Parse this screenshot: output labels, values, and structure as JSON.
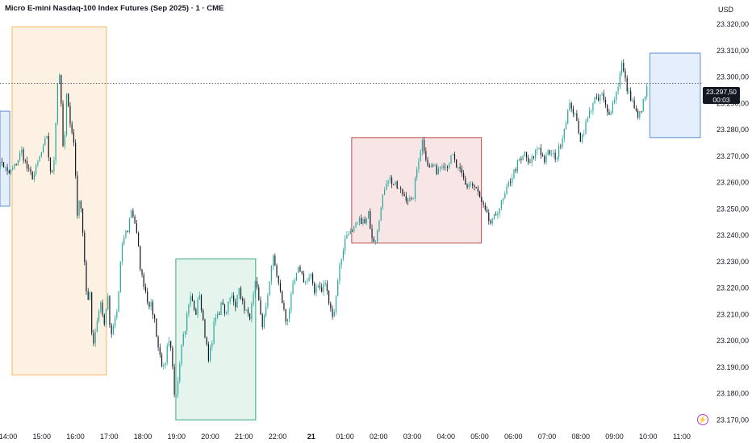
{
  "header": {
    "title": "Micro E-mini Nasdaq-100 Index Futures (Sep 2025) · 1 · CME",
    "currency": "USD"
  },
  "price_tag": {
    "price": "23.297,50",
    "countdown": "00:03"
  },
  "colors": {
    "up": "#26a69a",
    "down": "#131722",
    "text": "#131722",
    "orange_fill": "#fdf1e3",
    "orange_stroke": "#f5b860",
    "green_fill": "#e6f4ee",
    "green_stroke": "#3aa67f",
    "red_fill": "#f8e6e6",
    "red_stroke": "#c44e4e",
    "blue_fill": "#e5eefc",
    "blue_stroke": "#5b8fd6",
    "lightning": "#b53cc4"
  },
  "chart_data": {
    "type": "candlestick",
    "title": "Micro E-mini Nasdaq-100 Index Futures (Sep 2025) · 1 · CME",
    "ylim": [
      23165,
      23325
    ],
    "y_ticks": [
      "23.320,00",
      "23.310,00",
      "23.300,00",
      "23.290,00",
      "23.280,00",
      "23.270,00",
      "23.260,00",
      "23.250,00",
      "23.240,00",
      "23.230,00",
      "23.220,00",
      "23.210,00",
      "23.200,00",
      "23.190,00",
      "23.180,00",
      "23.170,00"
    ],
    "y_tick_values": [
      23320,
      23310,
      23300,
      23290,
      23280,
      23270,
      23260,
      23250,
      23240,
      23230,
      23220,
      23210,
      23200,
      23190,
      23180,
      23170
    ],
    "x_ticks": [
      {
        "label": "14:00",
        "t": 14.0,
        "bold": false
      },
      {
        "label": "15:00",
        "t": 15.0,
        "bold": false
      },
      {
        "label": "16:00",
        "t": 16.0,
        "bold": false
      },
      {
        "label": "17:00",
        "t": 17.0,
        "bold": false
      },
      {
        "label": "18:00",
        "t": 18.0,
        "bold": false
      },
      {
        "label": "19:00",
        "t": 19.0,
        "bold": false
      },
      {
        "label": "20:00",
        "t": 20.0,
        "bold": false
      },
      {
        "label": "21:00",
        "t": 21.0,
        "bold": false
      },
      {
        "label": "22:00",
        "t": 22.0,
        "bold": false
      },
      {
        "label": "21",
        "t": 23.0,
        "bold": true
      },
      {
        "label": "01:00",
        "t": 24.0,
        "bold": false
      },
      {
        "label": "02:00",
        "t": 25.0,
        "bold": false
      },
      {
        "label": "03:00",
        "t": 26.0,
        "bold": false
      },
      {
        "label": "04:00",
        "t": 27.0,
        "bold": false
      },
      {
        "label": "05:00",
        "t": 28.0,
        "bold": false
      },
      {
        "label": "06:00",
        "t": 29.0,
        "bold": false
      },
      {
        "label": "07:00",
        "t": 30.0,
        "bold": false
      },
      {
        "label": "08:00",
        "t": 31.0,
        "bold": false
      },
      {
        "label": "09:00",
        "t": 32.0,
        "bold": false
      },
      {
        "label": "10:00",
        "t": 33.0,
        "bold": false
      },
      {
        "label": "11:00",
        "t": 34.0,
        "bold": false
      }
    ],
    "x_range": [
      13.55,
      34.9
    ],
    "last_price": 23297.5,
    "path_points": [
      [
        13.55,
        23262
      ],
      [
        13.8,
        23268
      ],
      [
        14.0,
        23263
      ],
      [
        14.2,
        23266
      ],
      [
        14.4,
        23272
      ],
      [
        14.6,
        23264
      ],
      [
        14.75,
        23262
      ],
      [
        14.95,
        23270
      ],
      [
        15.05,
        23273
      ],
      [
        15.15,
        23278
      ],
      [
        15.25,
        23263
      ],
      [
        15.35,
        23266
      ],
      [
        15.45,
        23292
      ],
      [
        15.5,
        23306
      ],
      [
        15.55,
        23296
      ],
      [
        15.65,
        23268
      ],
      [
        15.75,
        23296
      ],
      [
        15.85,
        23282
      ],
      [
        15.95,
        23275
      ],
      [
        16.0,
        23264
      ],
      [
        16.05,
        23248
      ],
      [
        16.15,
        23254
      ],
      [
        16.25,
        23235
      ],
      [
        16.35,
        23212
      ],
      [
        16.45,
        23220
      ],
      [
        16.5,
        23196
      ],
      [
        16.6,
        23205
      ],
      [
        16.75,
        23215
      ],
      [
        16.85,
        23205
      ],
      [
        16.95,
        23218
      ],
      [
        17.05,
        23200
      ],
      [
        17.15,
        23207
      ],
      [
        17.25,
        23212
      ],
      [
        17.35,
        23232
      ],
      [
        17.45,
        23240
      ],
      [
        17.55,
        23242
      ],
      [
        17.65,
        23250
      ],
      [
        17.75,
        23246
      ],
      [
        17.85,
        23237
      ],
      [
        17.95,
        23225
      ],
      [
        18.05,
        23221
      ],
      [
        18.15,
        23215
      ],
      [
        18.25,
        23213
      ],
      [
        18.35,
        23208
      ],
      [
        18.45,
        23198
      ],
      [
        18.55,
        23192
      ],
      [
        18.65,
        23188
      ],
      [
        18.75,
        23200
      ],
      [
        18.85,
        23195
      ],
      [
        18.95,
        23178
      ],
      [
        19.05,
        23186
      ],
      [
        19.15,
        23200
      ],
      [
        19.25,
        23204
      ],
      [
        19.35,
        23213
      ],
      [
        19.45,
        23218
      ],
      [
        19.55,
        23208
      ],
      [
        19.65,
        23218
      ],
      [
        19.75,
        23212
      ],
      [
        19.85,
        23202
      ],
      [
        19.95,
        23192
      ],
      [
        20.05,
        23200
      ],
      [
        20.15,
        23210
      ],
      [
        20.25,
        23208
      ],
      [
        20.35,
        23216
      ],
      [
        20.45,
        23210
      ],
      [
        20.6,
        23218
      ],
      [
        20.75,
        23212
      ],
      [
        20.85,
        23222
      ],
      [
        20.95,
        23214
      ],
      [
        21.05,
        23212
      ],
      [
        21.15,
        23208
      ],
      [
        21.25,
        23214
      ],
      [
        21.35,
        23222
      ],
      [
        21.45,
        23214
      ],
      [
        21.55,
        23206
      ],
      [
        21.65,
        23211
      ],
      [
        21.75,
        23222
      ],
      [
        21.85,
        23232
      ],
      [
        21.95,
        23227
      ],
      [
        22.05,
        23220
      ],
      [
        22.15,
        23214
      ],
      [
        22.25,
        23207
      ],
      [
        22.35,
        23212
      ],
      [
        22.45,
        23220
      ],
      [
        22.55,
        23224
      ],
      [
        22.65,
        23228
      ],
      [
        22.75,
        23224
      ],
      [
        22.85,
        23222
      ],
      [
        23.0,
        23224
      ],
      [
        23.1,
        23219
      ],
      [
        23.2,
        23222
      ],
      [
        23.3,
        23218
      ],
      [
        23.4,
        23223
      ],
      [
        23.5,
        23216
      ],
      [
        23.6,
        23210
      ],
      [
        23.7,
        23212
      ],
      [
        23.8,
        23225
      ],
      [
        23.9,
        23232
      ],
      [
        24.0,
        23238
      ],
      [
        24.1,
        23242
      ],
      [
        24.2,
        23240
      ],
      [
        24.35,
        23244
      ],
      [
        24.5,
        23246
      ],
      [
        24.6,
        23244
      ],
      [
        24.7,
        23248
      ],
      [
        24.8,
        23240
      ],
      [
        24.9,
        23238
      ],
      [
        25.0,
        23246
      ],
      [
        25.1,
        23252
      ],
      [
        25.2,
        23260
      ],
      [
        25.3,
        23262
      ],
      [
        25.4,
        23260
      ],
      [
        25.55,
        23258
      ],
      [
        25.7,
        23256
      ],
      [
        25.85,
        23254
      ],
      [
        26.0,
        23252
      ],
      [
        26.1,
        23262
      ],
      [
        26.2,
        23270
      ],
      [
        26.3,
        23276
      ],
      [
        26.4,
        23270
      ],
      [
        26.5,
        23265
      ],
      [
        26.6,
        23267
      ],
      [
        26.7,
        23264
      ],
      [
        26.8,
        23266
      ],
      [
        26.9,
        23268
      ],
      [
        27.0,
        23266
      ],
      [
        27.1,
        23268
      ],
      [
        27.2,
        23270
      ],
      [
        27.3,
        23266
      ],
      [
        27.4,
        23264
      ],
      [
        27.5,
        23262
      ],
      [
        27.6,
        23258
      ],
      [
        27.7,
        23260
      ],
      [
        27.85,
        23258
      ],
      [
        27.95,
        23256
      ],
      [
        28.05,
        23252
      ],
      [
        28.15,
        23249
      ],
      [
        28.25,
        23246
      ],
      [
        28.35,
        23244
      ],
      [
        28.45,
        23247
      ],
      [
        28.55,
        23250
      ],
      [
        28.65,
        23252
      ],
      [
        28.75,
        23255
      ],
      [
        28.85,
        23259
      ],
      [
        28.95,
        23262
      ],
      [
        29.05,
        23265
      ],
      [
        29.15,
        23268
      ],
      [
        29.25,
        23268
      ],
      [
        29.35,
        23272
      ],
      [
        29.45,
        23266
      ],
      [
        29.6,
        23270
      ],
      [
        29.75,
        23274
      ],
      [
        29.85,
        23270
      ],
      [
        29.95,
        23268
      ],
      [
        30.05,
        23272
      ],
      [
        30.15,
        23270
      ],
      [
        30.3,
        23270
      ],
      [
        30.4,
        23275
      ],
      [
        30.5,
        23280
      ],
      [
        30.6,
        23286
      ],
      [
        30.7,
        23290
      ],
      [
        30.8,
        23286
      ],
      [
        30.9,
        23282
      ],
      [
        31.0,
        23276
      ],
      [
        31.1,
        23280
      ],
      [
        31.2,
        23284
      ],
      [
        31.3,
        23288
      ],
      [
        31.4,
        23292
      ],
      [
        31.5,
        23290
      ],
      [
        31.6,
        23294
      ],
      [
        31.7,
        23290
      ],
      [
        31.8,
        23286
      ],
      [
        31.9,
        23288
      ],
      [
        32.0,
        23292
      ],
      [
        32.1,
        23296
      ],
      [
        32.2,
        23306
      ],
      [
        32.3,
        23300
      ],
      [
        32.4,
        23294
      ],
      [
        32.5,
        23292
      ],
      [
        32.6,
        23288
      ],
      [
        32.7,
        23284
      ],
      [
        32.8,
        23288
      ],
      [
        32.9,
        23292
      ],
      [
        33.0,
        23297.5
      ]
    ],
    "annotations": [
      {
        "name": "blue-box-left",
        "color": "blue",
        "t0": 13.55,
        "t1": 14.05,
        "p_top": 23287,
        "p_bot": 23251
      },
      {
        "name": "orange-box",
        "color": "orange",
        "t0": 14.12,
        "t1": 16.92,
        "p_top": 23319,
        "p_bot": 23187
      },
      {
        "name": "green-box",
        "color": "green",
        "t0": 18.98,
        "t1": 21.35,
        "p_top": 23231,
        "p_bot": 23170
      },
      {
        "name": "red-box",
        "color": "red",
        "t0": 24.2,
        "t1": 28.05,
        "p_top": 23277,
        "p_bot": 23237
      },
      {
        "name": "blue-box-right",
        "color": "blue",
        "t0": 33.05,
        "t1": 34.55,
        "p_top": 23309,
        "p_bot": 23277
      }
    ]
  }
}
